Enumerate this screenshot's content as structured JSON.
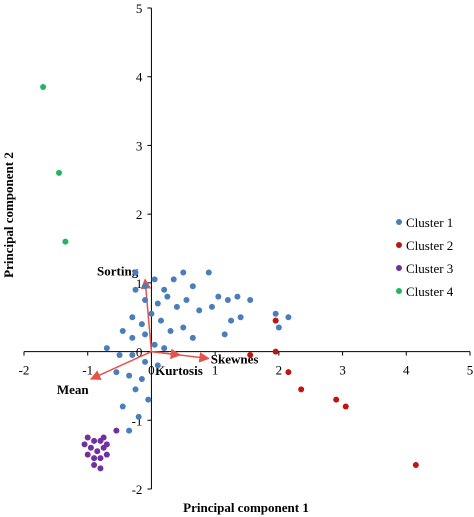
{
  "chart_data": {
    "type": "scatter",
    "title": "",
    "xlabel": "Principal component 1",
    "ylabel": "Principal component 2",
    "xlim": [
      -2,
      5
    ],
    "ylim": [
      -2,
      5
    ],
    "xticks": [
      "-2",
      "-1",
      "0",
      "1",
      "2",
      "3",
      "4",
      "5"
    ],
    "yticks": [
      "-2",
      "-1",
      "0",
      "1",
      "2",
      "3",
      "4",
      "5"
    ],
    "legend_position": "right",
    "series": [
      {
        "name": "Cluster 1",
        "color": "#4a7ebb",
        "points": [
          [
            -0.25,
            1.15
          ],
          [
            -0.1,
            0.95
          ],
          [
            0.05,
            1.05
          ],
          [
            0.2,
            0.9
          ],
          [
            0.35,
            1.05
          ],
          [
            0.5,
            1.15
          ],
          [
            0.65,
            0.95
          ],
          [
            0.9,
            1.15
          ],
          [
            1.05,
            0.8
          ],
          [
            1.2,
            0.75
          ],
          [
            1.35,
            0.8
          ],
          [
            1.55,
            0.75
          ],
          [
            -0.25,
            0.9
          ],
          [
            -0.1,
            0.75
          ],
          [
            0.1,
            0.7
          ],
          [
            0.25,
            0.8
          ],
          [
            0.4,
            0.65
          ],
          [
            0.55,
            0.75
          ],
          [
            0.75,
            0.6
          ],
          [
            0.95,
            0.65
          ],
          [
            1.25,
            0.45
          ],
          [
            1.4,
            0.5
          ],
          [
            1.95,
            0.55
          ],
          [
            2.15,
            0.5
          ],
          [
            -0.3,
            0.5
          ],
          [
            -0.15,
            0.4
          ],
          [
            0.0,
            0.55
          ],
          [
            0.15,
            0.45
          ],
          [
            0.3,
            0.3
          ],
          [
            0.5,
            0.35
          ],
          [
            0.65,
            0.2
          ],
          [
            1.15,
            0.25
          ],
          [
            2.0,
            0.35
          ],
          [
            -0.45,
            0.3
          ],
          [
            -0.3,
            0.2
          ],
          [
            -0.1,
            0.25
          ],
          [
            0.05,
            0.1
          ],
          [
            0.2,
            0.05
          ],
          [
            -0.7,
            0.05
          ],
          [
            -0.5,
            -0.05
          ],
          [
            -0.3,
            -0.05
          ],
          [
            -0.1,
            -0.15
          ],
          [
            0.1,
            -0.2
          ],
          [
            -0.55,
            -0.3
          ],
          [
            -0.35,
            -0.35
          ],
          [
            -0.15,
            -0.4
          ],
          [
            -0.25,
            -0.55
          ],
          [
            -0.05,
            -0.7
          ],
          [
            -0.45,
            -0.8
          ],
          [
            -0.2,
            -0.95
          ],
          [
            -0.35,
            -1.15
          ]
        ]
      },
      {
        "name": "Cluster 2",
        "color": "#c0150f",
        "points": [
          [
            1.95,
            0.45
          ],
          [
            1.95,
            0.0
          ],
          [
            1.55,
            -0.05
          ],
          [
            2.15,
            -0.3
          ],
          [
            2.35,
            -0.55
          ],
          [
            2.9,
            -0.7
          ],
          [
            3.05,
            -0.8
          ],
          [
            4.15,
            -1.65
          ]
        ]
      },
      {
        "name": "Cluster 3",
        "color": "#7030a0",
        "points": [
          [
            -1.0,
            -1.25
          ],
          [
            -0.9,
            -1.3
          ],
          [
            -0.8,
            -1.3
          ],
          [
            -0.95,
            -1.4
          ],
          [
            -0.85,
            -1.45
          ],
          [
            -0.75,
            -1.4
          ],
          [
            -1.0,
            -1.5
          ],
          [
            -0.9,
            -1.55
          ],
          [
            -0.8,
            -1.55
          ],
          [
            -0.7,
            -1.5
          ],
          [
            -0.9,
            -1.65
          ],
          [
            -0.8,
            -1.7
          ],
          [
            -0.75,
            -1.25
          ],
          [
            -0.7,
            -1.35
          ],
          [
            -0.55,
            -1.15
          ],
          [
            -1.05,
            -1.35
          ]
        ]
      },
      {
        "name": "Cluster 4",
        "color": "#1fb65f",
        "points": [
          [
            -1.7,
            3.85
          ],
          [
            -1.45,
            2.6
          ],
          [
            -1.35,
            1.6
          ]
        ]
      }
    ],
    "loadings": [
      {
        "name": "Sorting",
        "x": -0.1,
        "y": 1.05
      },
      {
        "name": "Skewnes",
        "x": 0.9,
        "y": -0.1
      },
      {
        "name": "Kurtosis",
        "x": 0.45,
        "y": -0.05
      },
      {
        "name": "Mean",
        "x": -0.95,
        "y": -0.4
      }
    ],
    "loading_color": "#e8524a"
  }
}
